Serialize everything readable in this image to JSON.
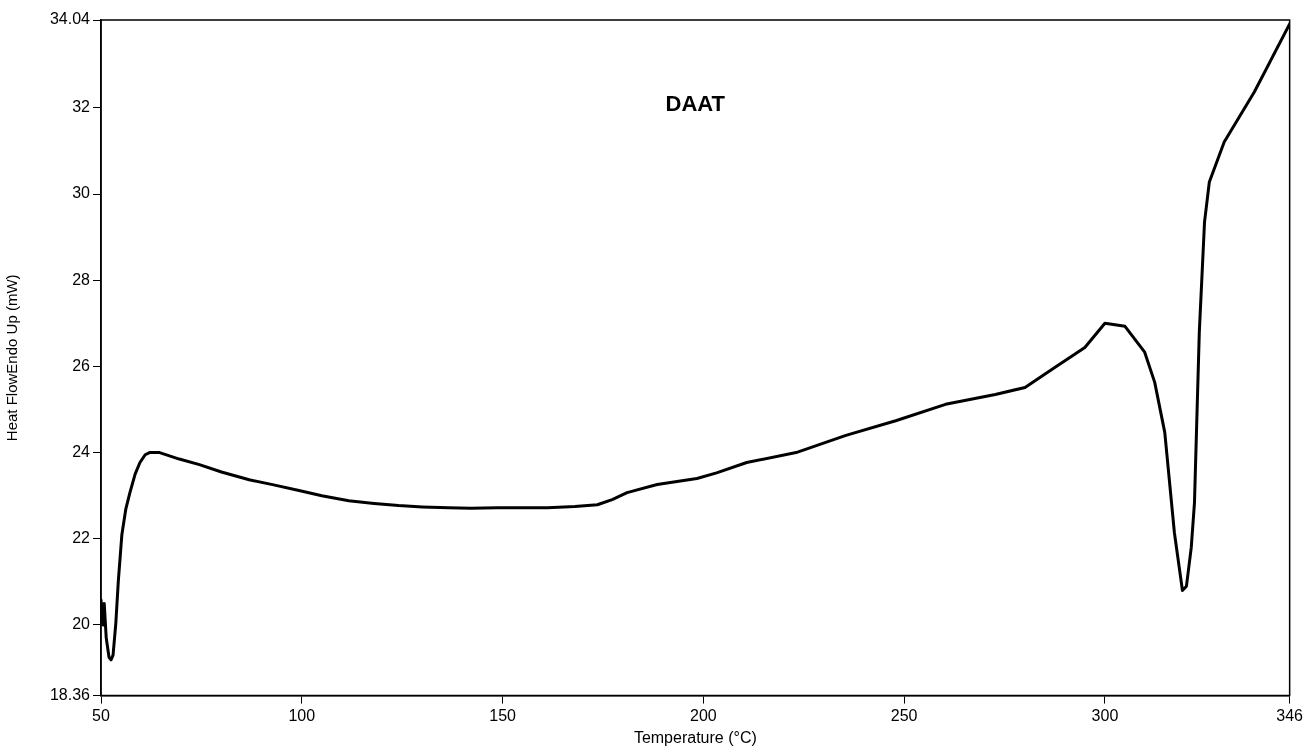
{
  "chart_data": {
    "type": "line",
    "title": "DAAT",
    "xlabel": "Temperature (°C)",
    "ylabel": "Heat FlowEndo Up (mW)",
    "xlim": [
      50,
      346
    ],
    "xticks": [
      50,
      100,
      150,
      200,
      250,
      300,
      346
    ],
    "ylim": [
      18.36,
      34.04
    ],
    "yticks": [
      18.36,
      20,
      22,
      24,
      26,
      28,
      30,
      32,
      34.04
    ],
    "grid": false,
    "legend": false,
    "marker": "none",
    "line_style": "solid",
    "series": [
      {
        "color": "#000000",
        "x": [
          50,
          50.5,
          50.8,
          51.3,
          52,
          52.5,
          53,
          53.7,
          54.3,
          55.2,
          56.2,
          57.2,
          58.5,
          59.7,
          61,
          62.1,
          64.6,
          69.5,
          74.5,
          80,
          86.9,
          93,
          99.3,
          105,
          111.7,
          118,
          124.1,
          130,
          136.5,
          142,
          148.8,
          155,
          161.2,
          168,
          173.6,
          177.3,
          181,
          188.5,
          198.4,
          203.3,
          210.8,
          223.1,
          235.5,
          247.9,
          260.3,
          272.7,
          280.1,
          287.6,
          295,
          300,
          305,
          309.9,
          312.4,
          314.9,
          317.3,
          319.3,
          320.3,
          321.5,
          322.3,
          323.5,
          324.8,
          326,
          329.7,
          337.2,
          346
        ],
        "values": [
          20.58,
          20.0,
          20.5,
          19.7,
          19.25,
          19.19,
          19.3,
          20.05,
          21.0,
          22.1,
          22.7,
          23.07,
          23.5,
          23.77,
          23.95,
          24.0,
          24.0,
          23.85,
          23.72,
          23.55,
          23.37,
          23.25,
          23.12,
          23.0,
          22.88,
          22.82,
          22.77,
          22.74,
          22.72,
          22.71,
          22.72,
          22.72,
          22.72,
          22.75,
          22.79,
          22.91,
          23.07,
          23.26,
          23.4,
          23.53,
          23.77,
          24.0,
          24.4,
          24.74,
          25.12,
          25.35,
          25.51,
          25.98,
          26.44,
          27.0,
          26.93,
          26.33,
          25.63,
          24.47,
          22.14,
          20.8,
          20.9,
          21.8,
          22.84,
          26.79,
          29.35,
          30.28,
          31.21,
          32.37,
          33.95
        ]
      }
    ]
  }
}
